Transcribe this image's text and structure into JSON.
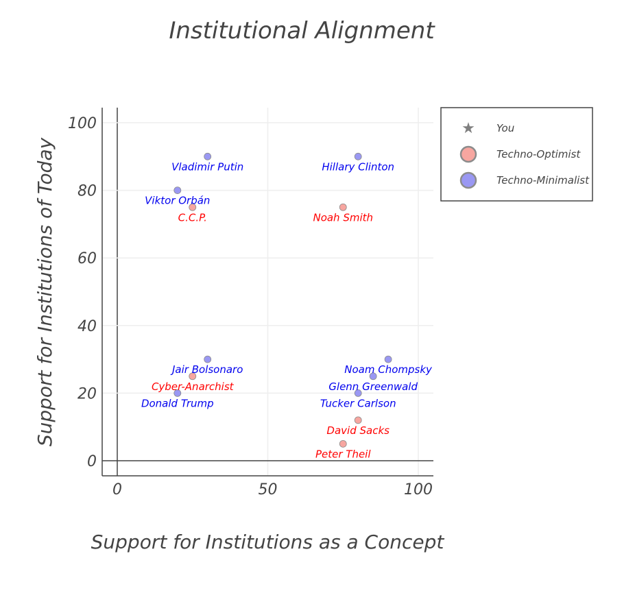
{
  "chart_data": {
    "type": "scatter",
    "title": "Institutional Alignment",
    "xlabel": "Support for Institutions as a Concept",
    "ylabel": "Support for Institutions of Today",
    "xlim": [
      -5,
      105
    ],
    "ylim": [
      -5,
      105
    ],
    "x_ticks": [
      0,
      50,
      100
    ],
    "y_ticks": [
      0,
      20,
      40,
      60,
      80,
      100
    ],
    "x_tick_labels": [
      "0",
      "50",
      "100"
    ],
    "y_tick_labels": [
      "0",
      "20",
      "40",
      "60",
      "80",
      "100"
    ],
    "grid": true,
    "legend_position": "top-right",
    "legend": [
      {
        "name": "You",
        "marker": "star",
        "color": "#7f7f7f"
      },
      {
        "name": "Techno-Optimist",
        "marker": "circle",
        "color": "#f7a6a0"
      },
      {
        "name": "Techno-Minimalist",
        "marker": "circle",
        "color": "#9a98f3"
      }
    ],
    "series": [
      {
        "name": "Techno-Optimist",
        "color": "#f7a6a0",
        "label_color": "#ff0000",
        "points": [
          {
            "label": "C.C.P.",
            "x": 25,
            "y": 75
          },
          {
            "label": "Noah Smith",
            "x": 75,
            "y": 75
          },
          {
            "label": "Cyber-Anarchist",
            "x": 25,
            "y": 25
          },
          {
            "label": "David Sacks",
            "x": 80,
            "y": 12
          },
          {
            "label": "Peter Theil",
            "x": 75,
            "y": 5
          }
        ]
      },
      {
        "name": "Techno-Minimalist",
        "color": "#9a98f3",
        "label_color": "#0000ee",
        "points": [
          {
            "label": "Vladimir Putin",
            "x": 30,
            "y": 90
          },
          {
            "label": "Hillary Clinton",
            "x": 80,
            "y": 90
          },
          {
            "label": "Viktor Orbán",
            "x": 20,
            "y": 80
          },
          {
            "label": "Jair Bolsonaro",
            "x": 30,
            "y": 30
          },
          {
            "label": "Noam Chompsky",
            "x": 90,
            "y": 30
          },
          {
            "label": "Glenn Greenwald",
            "x": 85,
            "y": 25
          },
          {
            "label": "Donald Trump",
            "x": 20,
            "y": 20
          },
          {
            "label": "Tucker Carlson",
            "x": 80,
            "y": 20
          }
        ]
      }
    ]
  }
}
